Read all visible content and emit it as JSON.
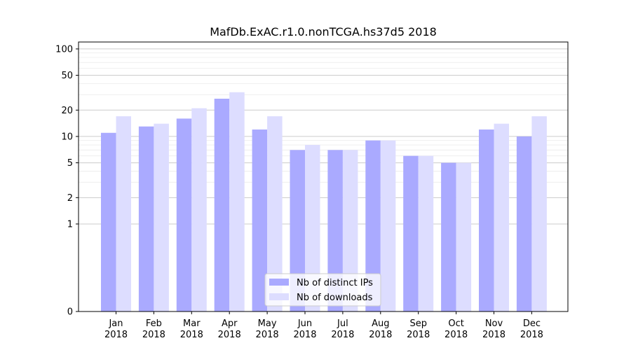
{
  "chart_data": {
    "type": "bar",
    "title": "MafDb.ExAC.r1.0.nonTCGA.hs37d5 2018",
    "xlabel": "",
    "ylabel": "",
    "yscale": "symlog",
    "ylim": [
      0,
      120
    ],
    "yticks": [
      0,
      1,
      2,
      5,
      10,
      20,
      50,
      100
    ],
    "categories": [
      [
        "Jan",
        "2018"
      ],
      [
        "Feb",
        "2018"
      ],
      [
        "Mar",
        "2018"
      ],
      [
        "Apr",
        "2018"
      ],
      [
        "May",
        "2018"
      ],
      [
        "Jun",
        "2018"
      ],
      [
        "Jul",
        "2018"
      ],
      [
        "Aug",
        "2018"
      ],
      [
        "Sep",
        "2018"
      ],
      [
        "Oct",
        "2018"
      ],
      [
        "Nov",
        "2018"
      ],
      [
        "Dec",
        "2018"
      ]
    ],
    "series": [
      {
        "name": "Nb of distinct IPs",
        "color": "#aaaaff",
        "values": [
          11,
          13,
          16,
          27,
          12,
          7,
          7,
          9,
          6,
          5,
          12,
          10
        ]
      },
      {
        "name": "Nb of downloads",
        "color": "#ddddff",
        "values": [
          17,
          14,
          21,
          32,
          17,
          8,
          7,
          9,
          6,
          5,
          14,
          17
        ]
      }
    ],
    "legend_position": "lower-center",
    "grid": true
  }
}
